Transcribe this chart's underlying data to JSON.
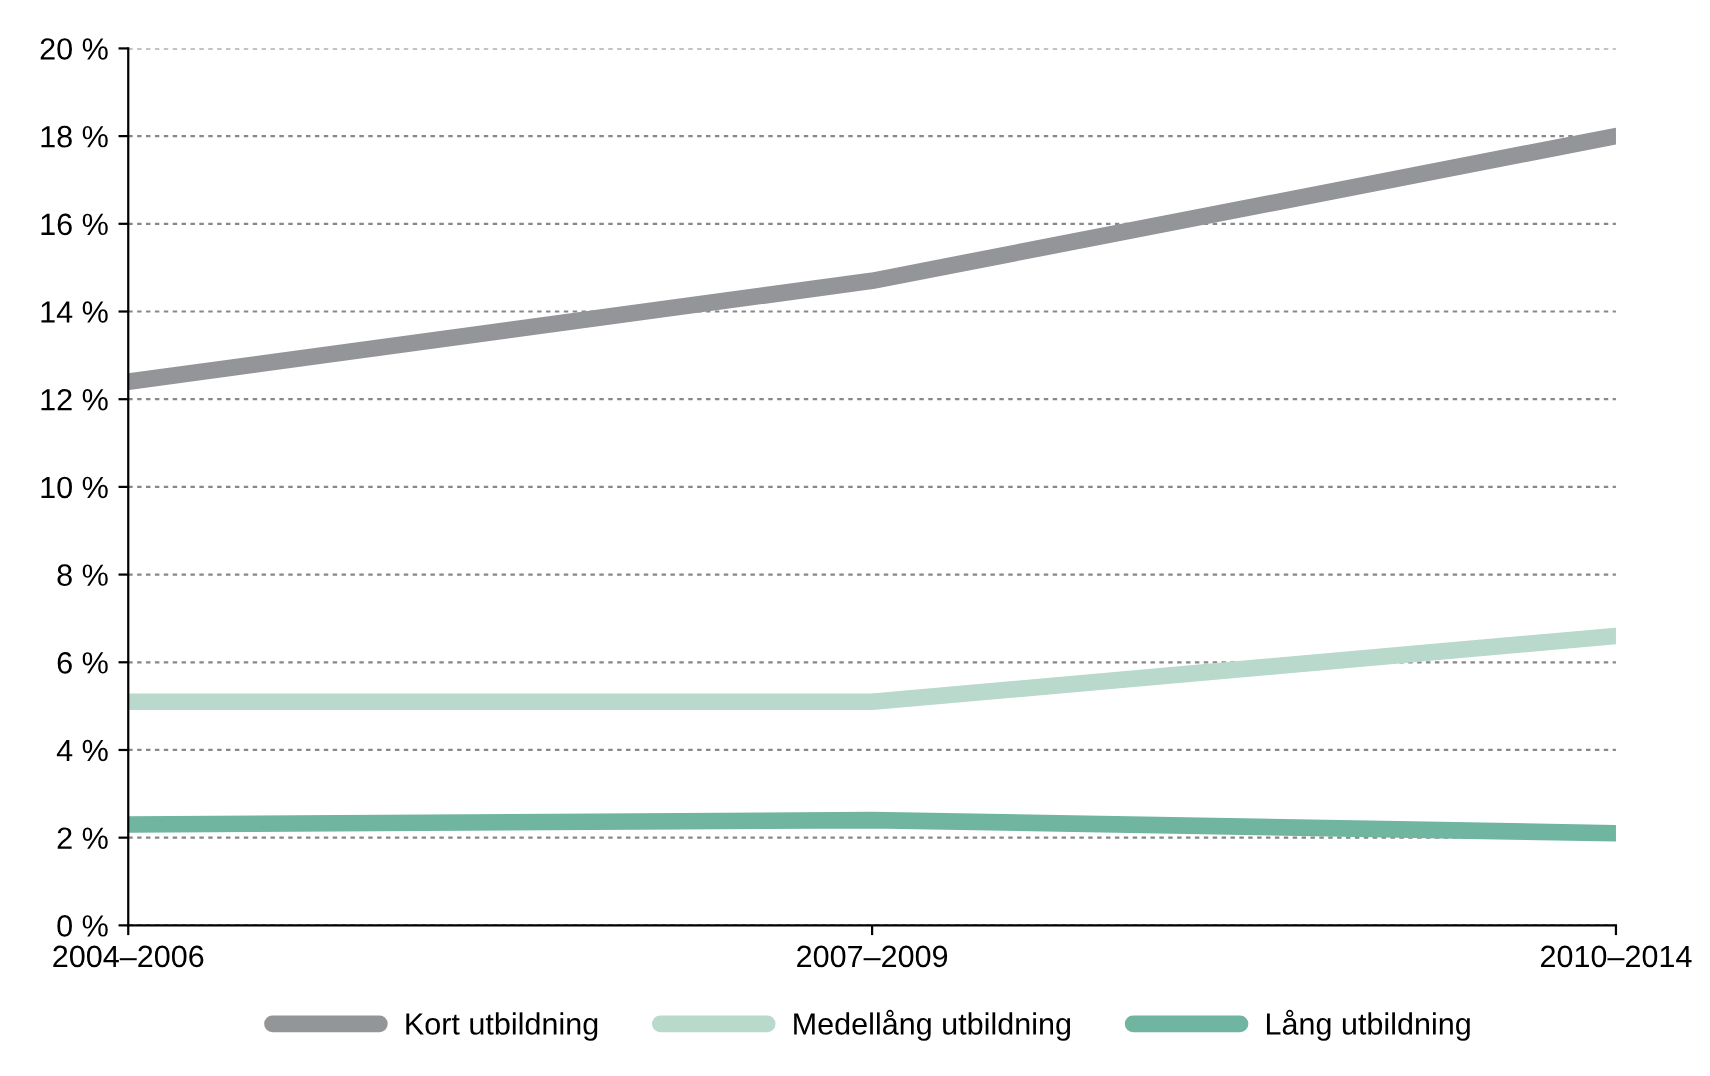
{
  "chart_data": {
    "type": "line",
    "categories": [
      "2004–2006",
      "2007–2009",
      "2010–2014"
    ],
    "series": [
      {
        "name": "Kort utbildning",
        "color": "#939598",
        "values": [
          12.4,
          14.7,
          18.0
        ]
      },
      {
        "name": "Medellång utbildning",
        "color": "#b9d9cc",
        "values": [
          5.1,
          5.1,
          6.6
        ]
      },
      {
        "name": "Lång utbildning",
        "color": "#6fb5a0",
        "values": [
          2.3,
          2.4,
          2.1
        ]
      }
    ],
    "ylim": [
      0,
      20
    ],
    "yticks": [
      {
        "value": 0,
        "label": "0 %"
      },
      {
        "value": 2,
        "label": "2 %"
      },
      {
        "value": 4,
        "label": "4 %"
      },
      {
        "value": 6,
        "label": "6 %"
      },
      {
        "value": 8,
        "label": "8 %"
      },
      {
        "value": 10,
        "label": "10 %"
      },
      {
        "value": 12,
        "label": "12 %"
      },
      {
        "value": 14,
        "label": "14 %"
      },
      {
        "value": 16,
        "label": "16 %"
      },
      {
        "value": 18,
        "label": "18 %"
      },
      {
        "value": 20,
        "label": "20 %"
      }
    ],
    "grid": "y",
    "legend": "bottom",
    "marker": "none",
    "line_style": "solid"
  }
}
